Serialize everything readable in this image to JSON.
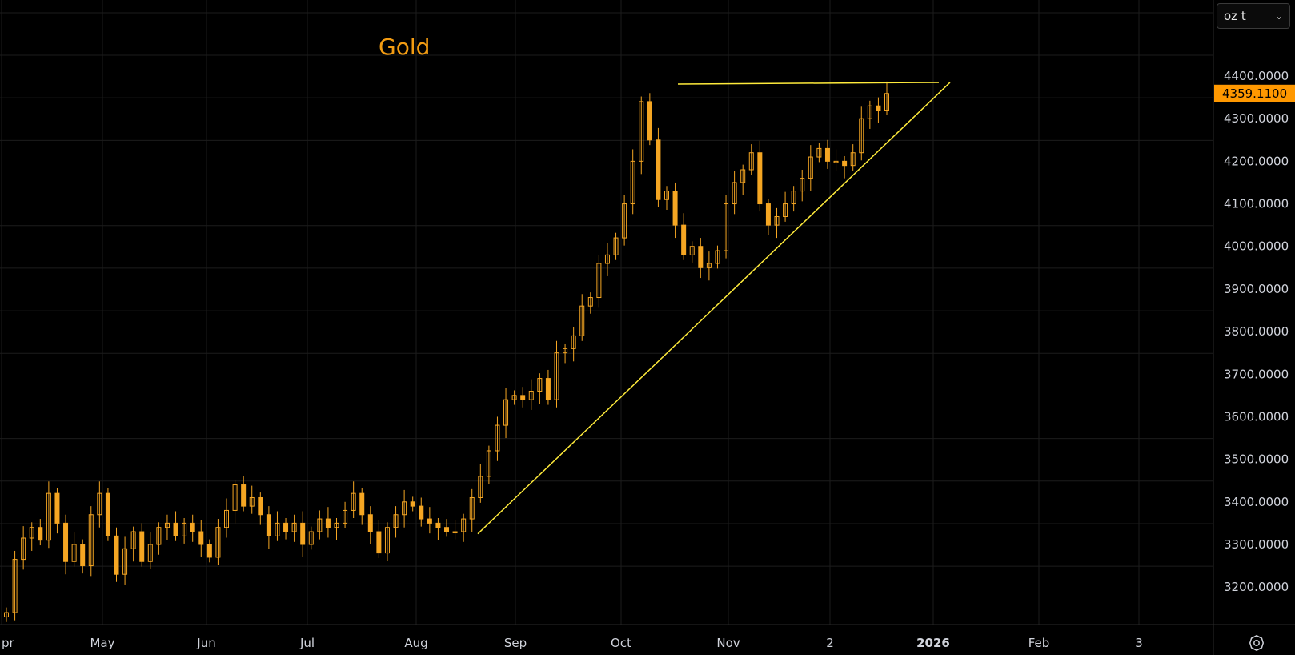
{
  "unit_selector": {
    "value": "oz t",
    "chevron_icon": "chevron-down-icon"
  },
  "settings": {
    "icon": "settings-gear-icon"
  },
  "price_label": {
    "value": "4359.1100",
    "color": "#ff9800"
  },
  "chart_data": {
    "type": "candlestick",
    "title": "Gold",
    "title_color": "#f39c12",
    "candle_color": "#f5a623",
    "trendline_color": "#ffeb3b",
    "grid": true,
    "y_axis_position": "right",
    "y_ticks": [
      "3200.0000",
      "3300.0000",
      "3400.0000",
      "3500.0000",
      "3600.0000",
      "3700.0000",
      "3800.0000",
      "3900.0000",
      "4000.0000",
      "4100.0000",
      "4200.0000",
      "4300.0000",
      "4400.0000"
    ],
    "x_ticks": [
      "pr",
      "May",
      "Jun",
      "Jul",
      "Aug",
      "Sep",
      "Oct",
      "Nov",
      "2",
      "2026",
      "Feb",
      "3"
    ],
    "ylim": [
      3125,
      4525
    ],
    "series": [
      {
        "x": 0,
        "values": [
          3140,
          3265,
          3315,
          3340,
          3310,
          3420,
          3350,
          3260,
          3300,
          3250,
          3370,
          3420,
          3320,
          3230,
          3290,
          3330,
          3260,
          3300,
          3340,
          3350,
          3320,
          3350,
          3330,
          3300,
          3270,
          3340,
          3380,
          3440,
          3390,
          3410,
          3370,
          3320,
          3350,
          3330,
          3350,
          3300,
          3330,
          3360,
          3340,
          3350,
          3380,
          3420,
          3370,
          3330,
          3280,
          3340,
          3370,
          3400,
          3390,
          3360,
          3350,
          3340,
          3330,
          3330,
          3360,
          3410,
          3460,
          3520,
          3580,
          3640,
          3650,
          3640,
          3660,
          3690,
          3640,
          3750,
          3760,
          3790,
          3860,
          3880,
          3960,
          3980,
          4020,
          4100,
          4200,
          4340,
          4250,
          4110,
          4130,
          4050,
          3980,
          4000,
          3950,
          3960,
          3990,
          4100,
          4150,
          4180,
          4220,
          4100,
          4050,
          4070,
          4100,
          4130,
          4160,
          4210,
          4230,
          4200,
          4200,
          4190,
          4220,
          4300,
          4330,
          4320,
          4359
        ]
      }
    ],
    "annotations": [
      {
        "type": "horizontal_line",
        "value": 4385,
        "label": ""
      },
      {
        "type": "ascending_trendline",
        "from": [
          3325,
          "late Aug"
        ],
        "to": [
          4385,
          "early Jan 2026"
        ]
      }
    ]
  }
}
